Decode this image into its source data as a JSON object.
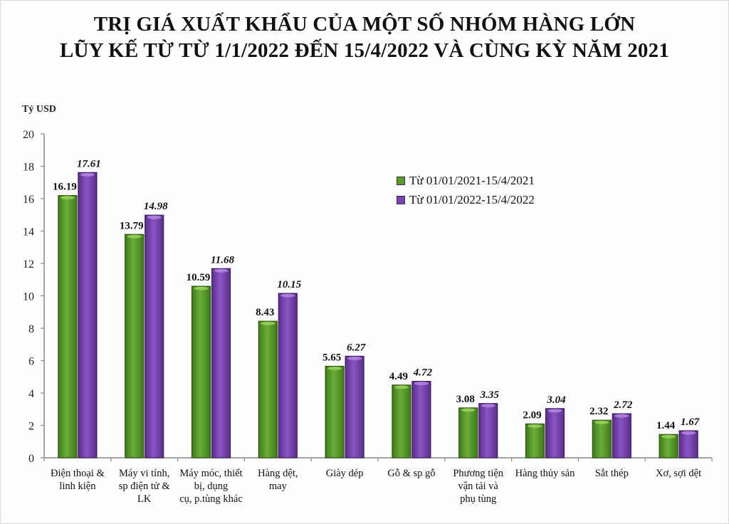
{
  "chart_data": {
    "type": "bar",
    "title": "TRỊ GIÁ XUẤT KHẨU CỦA MỘT SỐ NHÓM HÀNG LỚN",
    "subtitle": "LŨY KẾ TỪ TỪ 1/1/2022 ĐẾN 15/4/2022 VÀ CÙNG KỲ NĂM 2021",
    "ylabel": "Tỷ USD",
    "xlabel": "",
    "ylim": [
      0,
      20
    ],
    "yticks": [
      0,
      2,
      4,
      6,
      8,
      10,
      12,
      14,
      16,
      18,
      20
    ],
    "grid": false,
    "legend_position": "upper right (inside plot)",
    "categories": [
      "Điện thoại & linh kiện",
      "Máy vi tính, sp điện tử & LK",
      "Máy móc, thiết bị, dụng cụ, p.tùng khác",
      "Hàng dệt, may",
      "Giày dép",
      "Gỗ & sp gỗ",
      "Phương tiện vận tải và phụ tùng",
      "Hàng thủy sản",
      "Sắt thép",
      "Xơ, sợi dệt"
    ],
    "category_lines": [
      [
        "Điện thoại &",
        "linh kiện"
      ],
      [
        "Máy vi tính,",
        "sp điện tử &",
        "LK"
      ],
      [
        "Máy móc, thiết",
        "bị, dụng",
        "cụ, p.tùng khác"
      ],
      [
        "Hàng dệt,",
        "may"
      ],
      [
        "Giày dép"
      ],
      [
        "Gỗ & sp gỗ"
      ],
      [
        "Phương tiện",
        "vận tải và",
        "phụ tùng"
      ],
      [
        "Hàng thủy sản"
      ],
      [
        "Sắt thép"
      ],
      [
        "Xơ, sợi dệt"
      ]
    ],
    "series": [
      {
        "name": "Từ 01/01/2021-15/4/2021",
        "color": "#5a9a2e",
        "label_style": "bold",
        "values": [
          16.19,
          13.79,
          10.59,
          8.43,
          5.65,
          4.49,
          3.08,
          2.09,
          2.32,
          1.44
        ]
      },
      {
        "name": "Từ 01/01/2022-15/4/2022",
        "color": "#7a45b0",
        "label_style": "bold-italic",
        "values": [
          17.61,
          14.98,
          11.68,
          10.15,
          6.27,
          4.72,
          3.35,
          3.04,
          2.72,
          1.67
        ]
      }
    ]
  }
}
